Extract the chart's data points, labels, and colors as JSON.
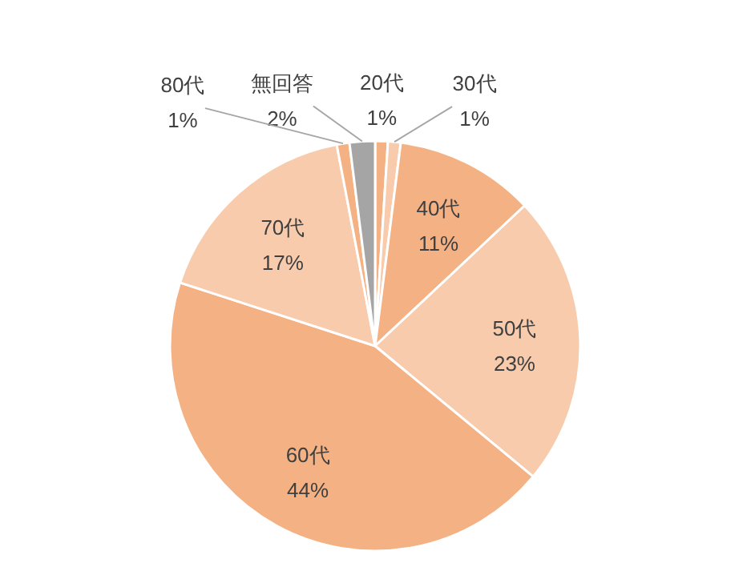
{
  "chart_data": {
    "type": "pie",
    "categories": [
      "20代",
      "30代",
      "40代",
      "50代",
      "60代",
      "70代",
      "80代",
      "無回答"
    ],
    "values": [
      1,
      1,
      11,
      23,
      44,
      17,
      1,
      2
    ],
    "value_labels": [
      "1%",
      "1%",
      "11%",
      "23%",
      "44%",
      "17%",
      "1%",
      "2%"
    ],
    "colors": [
      "#f4b183",
      "#f8cbad",
      "#f4b183",
      "#f8cbad",
      "#f4b183",
      "#f8cbad",
      "#f4b183",
      "#a5a5a5"
    ]
  }
}
